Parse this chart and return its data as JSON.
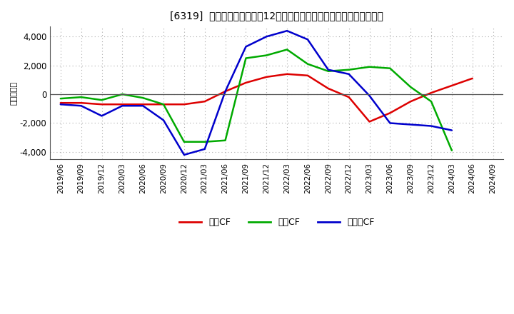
{
  "title": "[6319]  キャッシュフローの12か月移動合計の対前年同期増減額の推移",
  "ylabel": "（百万円）",
  "background_color": "#ffffff",
  "plot_background_color": "#ffffff",
  "ylim": [
    -4500,
    4700
  ],
  "yticks": [
    -4000,
    -2000,
    0,
    2000,
    4000
  ],
  "x_labels": [
    "2019/06",
    "2019/09",
    "2019/12",
    "2020/03",
    "2020/06",
    "2020/09",
    "2020/12",
    "2021/03",
    "2021/06",
    "2021/09",
    "2021/12",
    "2022/03",
    "2022/06",
    "2022/09",
    "2022/12",
    "2023/03",
    "2023/06",
    "2023/09",
    "2023/12",
    "2024/03",
    "2024/06",
    "2024/09"
  ],
  "series": {
    "営業CF": {
      "color": "#dd0000",
      "values": [
        -600,
        -600,
        -700,
        -700,
        -700,
        -700,
        -700,
        -500,
        200,
        800,
        1200,
        1400,
        1300,
        400,
        -200,
        -1900,
        -1300,
        -500,
        100,
        600,
        1100,
        null
      ]
    },
    "投資CF": {
      "color": "#00aa00",
      "values": [
        -300,
        -200,
        -400,
        0,
        -250,
        -700,
        -3300,
        -3300,
        -3200,
        2500,
        2700,
        3100,
        2100,
        1600,
        1700,
        1900,
        1800,
        500,
        -500,
        -3900,
        null,
        null
      ]
    },
    "フリーCF": {
      "color": "#0000cc",
      "values": [
        -700,
        -800,
        -1500,
        -800,
        -800,
        -1800,
        -4200,
        -3800,
        200,
        3300,
        4000,
        4400,
        3800,
        1700,
        1400,
        -100,
        -2000,
        -2100,
        -2200,
        -2500,
        null,
        null
      ]
    }
  },
  "legend_labels": [
    "営業CF",
    "投資CF",
    "フリーCF"
  ],
  "legend_colors": [
    "#dd0000",
    "#00aa00",
    "#0000cc"
  ]
}
